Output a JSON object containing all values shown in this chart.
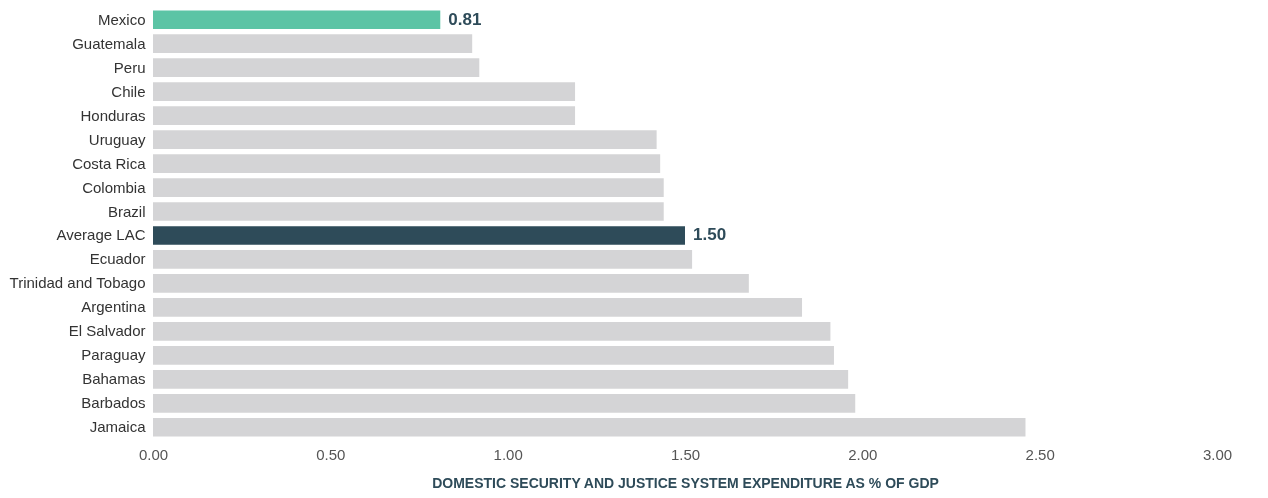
{
  "chart_data": {
    "type": "bar",
    "orientation": "horizontal",
    "xlabel": "DOMESTIC SECURITY AND JUSTICE SYSTEM EXPENDITURE AS % OF GDP",
    "categories": [
      "Mexico",
      "Guatemala",
      "Peru",
      "Chile",
      "Honduras",
      "Uruguay",
      "Costa Rica",
      "Colombia",
      "Brazil",
      "Average LAC",
      "Ecuador",
      "Trinidad and Tobago",
      "Argentina",
      "El Salvador",
      "Paraguay",
      "Bahamas",
      "Barbados",
      "Jamaica"
    ],
    "values": [
      0.81,
      0.9,
      0.92,
      1.19,
      1.19,
      1.42,
      1.43,
      1.44,
      1.44,
      1.5,
      1.52,
      1.68,
      1.83,
      1.91,
      1.92,
      1.96,
      1.98,
      2.46
    ],
    "colors": [
      "#5cc4a5",
      "#d4d4d6",
      "#d4d4d6",
      "#d4d4d6",
      "#d4d4d6",
      "#d4d4d6",
      "#d4d4d6",
      "#d4d4d6",
      "#d4d4d6",
      "#2e4b59",
      "#d4d4d6",
      "#d4d4d6",
      "#d4d4d6",
      "#d4d4d6",
      "#d4d4d6",
      "#d4d4d6",
      "#d4d4d6",
      "#d4d4d6"
    ],
    "value_labels": [
      "0.81",
      null,
      null,
      null,
      null,
      null,
      null,
      null,
      null,
      "1.50",
      null,
      null,
      null,
      null,
      null,
      null,
      null,
      null
    ],
    "xlim": [
      0,
      3
    ],
    "xticks": [
      {
        "value": 0,
        "label": "0.00"
      },
      {
        "value": 0.5,
        "label": "0.50"
      },
      {
        "value": 1,
        "label": "1.00"
      },
      {
        "value": 1.5,
        "label": "1.50"
      },
      {
        "value": 2,
        "label": "2.00"
      },
      {
        "value": 2.5,
        "label": "2.50"
      },
      {
        "value": 3,
        "label": "3.00"
      }
    ],
    "grid": false
  }
}
